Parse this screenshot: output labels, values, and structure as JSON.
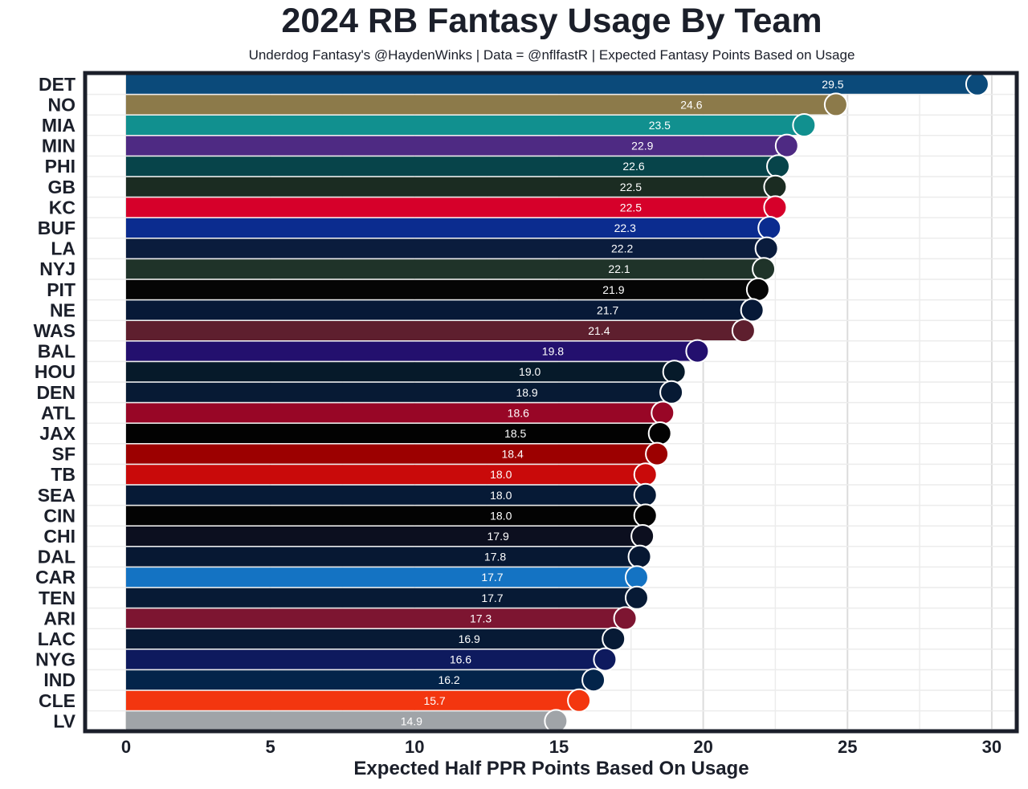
{
  "title": "2024 RB Fantasy Usage By Team",
  "subtitle": "Underdog Fantasy's @HaydenWinks | Data = @nflfastR | Expected Fantasy Points Based on Usage",
  "chart_data": {
    "type": "bar",
    "orientation": "horizontal",
    "title": "2024 RB Fantasy Usage By Team",
    "subtitle": "Underdog Fantasy's @HaydenWinks | Data = @nflfastR | Expected Fantasy Points Based on Usage",
    "xlabel": "Expected Half PPR Points Based On Usage",
    "ylabel": "",
    "xlim": [
      0,
      30
    ],
    "xticks": [
      0,
      5,
      10,
      15,
      20,
      25,
      30
    ],
    "grid": true,
    "legend": "none",
    "bars": [
      {
        "team": "DET",
        "value": 29.5,
        "label": "29.5",
        "color": "#0b4a7a"
      },
      {
        "team": "NO",
        "value": 24.6,
        "label": "24.6",
        "color": "#8c7a4a"
      },
      {
        "team": "MIA",
        "value": 23.5,
        "label": "23.5",
        "color": "#11908f"
      },
      {
        "team": "MIN",
        "value": 22.9,
        "label": "22.9",
        "color": "#4e2a83"
      },
      {
        "team": "PHI",
        "value": 22.6,
        "label": "22.6",
        "color": "#07444a"
      },
      {
        "team": "GB",
        "value": 22.5,
        "label": "22.5",
        "color": "#1b2c22"
      },
      {
        "team": "KC",
        "value": 22.5,
        "label": "22.5",
        "color": "#d6002a"
      },
      {
        "team": "BUF",
        "value": 22.3,
        "label": "22.3",
        "color": "#0b2c8f"
      },
      {
        "team": "LA",
        "value": 22.2,
        "label": "22.2",
        "color": "#0a1c3d"
      },
      {
        "team": "NYJ",
        "value": 22.1,
        "label": "22.1",
        "color": "#1f3329"
      },
      {
        "team": "PIT",
        "value": 21.9,
        "label": "21.9",
        "color": "#050505"
      },
      {
        "team": "NE",
        "value": 21.7,
        "label": "21.7",
        "color": "#071937"
      },
      {
        "team": "WAS",
        "value": 21.4,
        "label": "21.4",
        "color": "#5e1f2e"
      },
      {
        "team": "BAL",
        "value": 19.8,
        "label": "19.8",
        "color": "#23106e"
      },
      {
        "team": "HOU",
        "value": 19.0,
        "label": "19.0",
        "color": "#061a2a"
      },
      {
        "team": "DEN",
        "value": 18.9,
        "label": "18.9",
        "color": "#071a34"
      },
      {
        "team": "ATL",
        "value": 18.6,
        "label": "18.6",
        "color": "#980626"
      },
      {
        "team": "JAX",
        "value": 18.5,
        "label": "18.5",
        "color": "#020202"
      },
      {
        "team": "SF",
        "value": 18.4,
        "label": "18.4",
        "color": "#9c0000"
      },
      {
        "team": "TB",
        "value": 18.0,
        "label": "18.0",
        "color": "#c90a0a"
      },
      {
        "team": "SEA",
        "value": 18.0,
        "label": "18.0",
        "color": "#061a36"
      },
      {
        "team": "CIN",
        "value": 18.0,
        "label": "18.0",
        "color": "#030303"
      },
      {
        "team": "CHI",
        "value": 17.9,
        "label": "17.9",
        "color": "#0c0f1f"
      },
      {
        "team": "DAL",
        "value": 17.8,
        "label": "17.8",
        "color": "#071833"
      },
      {
        "team": "CAR",
        "value": 17.7,
        "label": "17.7",
        "color": "#1473c3"
      },
      {
        "team": "TEN",
        "value": 17.7,
        "label": "17.7",
        "color": "#071a35"
      },
      {
        "team": "ARI",
        "value": 17.3,
        "label": "17.3",
        "color": "#7d1531"
      },
      {
        "team": "LAC",
        "value": 16.9,
        "label": "16.9",
        "color": "#071a35"
      },
      {
        "team": "NYG",
        "value": 16.6,
        "label": "16.6",
        "color": "#0e1a5e"
      },
      {
        "team": "IND",
        "value": 16.2,
        "label": "16.2",
        "color": "#03244a"
      },
      {
        "team": "CLE",
        "value": 15.7,
        "label": "15.7",
        "color": "#f3360f"
      },
      {
        "team": "LV",
        "value": 14.9,
        "label": "14.9",
        "color": "#a0a4a8"
      }
    ]
  }
}
